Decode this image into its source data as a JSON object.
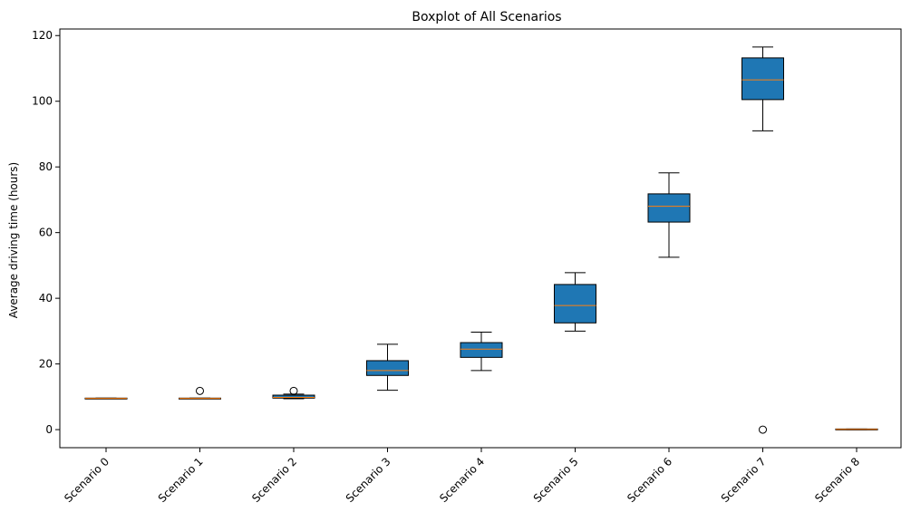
{
  "chart_data": {
    "type": "boxplot",
    "title": "Boxplot of All Scenarios",
    "xlabel": "",
    "ylabel": "Average driving time (hours)",
    "ylim": [
      -5.5,
      122
    ],
    "yticks": [
      0,
      20,
      40,
      60,
      80,
      100,
      120
    ],
    "grid": false,
    "colors": {
      "box_fill": "#1f77b4",
      "median": "#ff7f0e",
      "edge": "#000000"
    },
    "categories": [
      "Scenario 0",
      "Scenario 1",
      "Scenario 2",
      "Scenario 3",
      "Scenario 4",
      "Scenario 5",
      "Scenario 6",
      "Scenario 7",
      "Scenario 8"
    ],
    "boxes": [
      {
        "whisker_low": 9.4,
        "q1": 9.4,
        "median": 9.5,
        "q3": 9.6,
        "whisker_high": 9.6,
        "outliers": []
      },
      {
        "whisker_low": 9.4,
        "q1": 9.4,
        "median": 9.5,
        "q3": 9.6,
        "whisker_high": 9.6,
        "outliers": [
          11.8
        ]
      },
      {
        "whisker_low": 9.4,
        "q1": 9.6,
        "median": 9.8,
        "q3": 10.5,
        "whisker_high": 10.8,
        "outliers": [
          11.8
        ]
      },
      {
        "whisker_low": 12.0,
        "q1": 16.5,
        "median": 18.0,
        "q3": 21.0,
        "whisker_high": 26.0,
        "outliers": []
      },
      {
        "whisker_low": 18.0,
        "q1": 22.0,
        "median": 24.5,
        "q3": 26.5,
        "whisker_high": 29.7,
        "outliers": []
      },
      {
        "whisker_low": 30.0,
        "q1": 32.5,
        "median": 37.8,
        "q3": 44.2,
        "whisker_high": 47.8,
        "outliers": []
      },
      {
        "whisker_low": 52.5,
        "q1": 63.2,
        "median": 68.0,
        "q3": 71.8,
        "whisker_high": 78.2,
        "outliers": []
      },
      {
        "whisker_low": 91.0,
        "q1": 100.5,
        "median": 106.5,
        "q3": 113.2,
        "whisker_high": 116.5,
        "outliers": [
          0
        ]
      },
      {
        "whisker_low": 0,
        "q1": 0,
        "median": 0.1,
        "q3": 0.2,
        "whisker_high": 0.2,
        "outliers": []
      }
    ]
  }
}
